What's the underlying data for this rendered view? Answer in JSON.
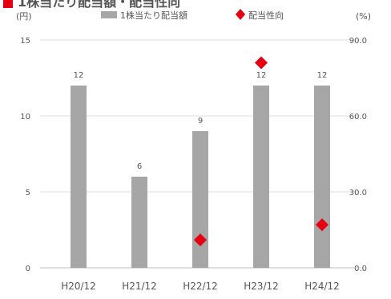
{
  "chart_data": {
    "type": "bar",
    "title": "1株当たり配当額・配当性向",
    "y_unit_left": "(円)",
    "y_unit_right": "(%)",
    "categories": [
      "H20/12",
      "H21/12",
      "H22/12",
      "H23/12",
      "H24/12"
    ],
    "ylim_left": [
      0,
      15
    ],
    "yticks_left": [
      "0",
      "5",
      "10",
      "15"
    ],
    "ylim_right": [
      0,
      90
    ],
    "yticks_right": [
      "0.0",
      "30.0",
      "60.0",
      "90.0"
    ],
    "grid": true,
    "legend_position": "top",
    "series": [
      {
        "name": "1株当たり配当額",
        "kind": "bar",
        "axis": "left",
        "color": "#a6a6a6",
        "values": [
          12,
          6,
          9,
          12,
          12
        ],
        "labels": [
          "12",
          "6",
          "9",
          "12",
          "12"
        ]
      },
      {
        "name": "配当性向",
        "kind": "marker",
        "axis": "right",
        "color": "#e60012",
        "values": [
          null,
          null,
          11,
          81,
          17
        ],
        "labels": [
          "",
          "",
          "",
          "",
          ""
        ]
      }
    ],
    "annotations": [
      {
        "category": "H22/12",
        "text": "",
        "axis": "right"
      },
      {
        "category": "H23/12",
        "text": "",
        "axis": "right"
      },
      {
        "category": "H24/12",
        "text": "",
        "axis": "right"
      }
    ]
  }
}
